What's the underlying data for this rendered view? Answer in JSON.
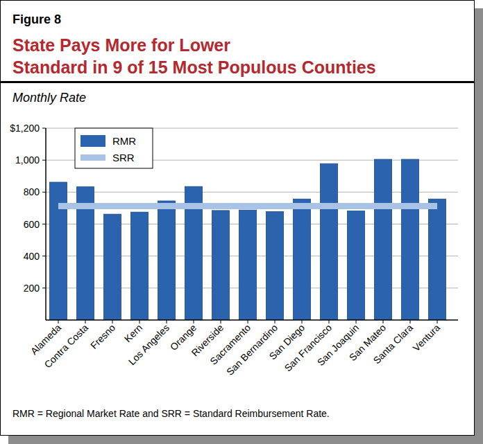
{
  "chart_data": {
    "type": "bar",
    "figure_label": "Figure 8",
    "title": [
      "State Pays More for Lower",
      "Standard in 9 of 15 Most Populous Counties"
    ],
    "y_label": "Monthly Rate",
    "note": "RMR = Regional Market Rate and SRR = Standard Reimbursement Rate.",
    "categories": [
      "Alameda",
      "Contra Costa",
      "Fresno",
      "Kern",
      "Los Angeles",
      "Orange",
      "Riverside",
      "Sacramento",
      "San Bernardino",
      "San Diego",
      "San Francisco",
      "San Joaquin",
      "San Mateo",
      "Santa Clara",
      "Ventura"
    ],
    "series": [
      {
        "name": "RMR",
        "type": "bar",
        "color": "#2b63ae",
        "values": [
          862,
          833,
          662,
          675,
          745,
          835,
          685,
          688,
          678,
          757,
          978,
          682,
          1005,
          1005,
          757
        ]
      },
      {
        "name": "SRR",
        "type": "line",
        "color": "#a9c3e6",
        "values": [
          713,
          713,
          713,
          713,
          713,
          713,
          713,
          713,
          713,
          713,
          713,
          713,
          713,
          713,
          713
        ]
      }
    ],
    "ylim": [
      0,
      1200
    ],
    "yticks": [
      200,
      400,
      600,
      800,
      {
        "value": 1000,
        "label": "1,000"
      },
      {
        "value": 1200,
        "label": "$1,200"
      }
    ],
    "grid": true,
    "legend": "upper-left"
  }
}
